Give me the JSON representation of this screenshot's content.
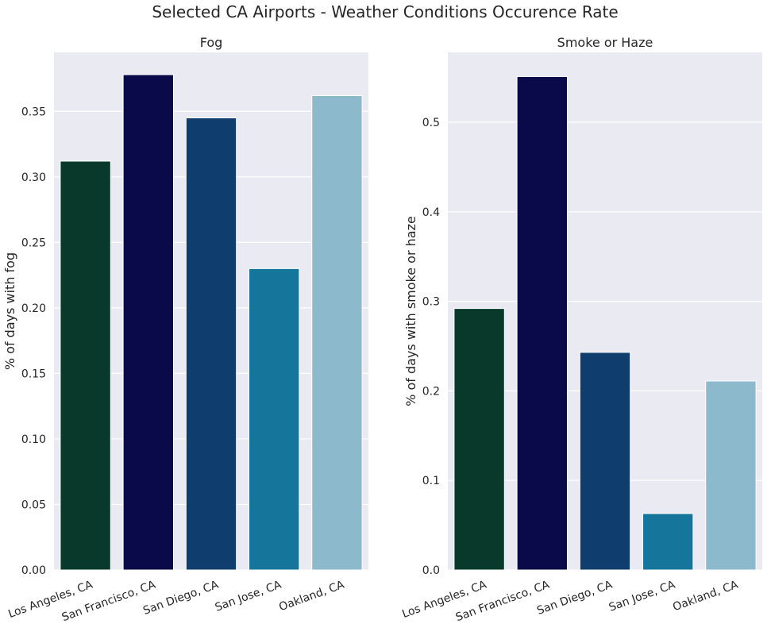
{
  "figure": {
    "title": "Selected CA Airports - Weather Conditions Occurence Rate"
  },
  "colors": {
    "panel_background": "#eaeaf2",
    "grid": "#ffffff",
    "text": "#262626",
    "bar_palette": [
      "#08392a",
      "#0a0949",
      "#0f3e6e",
      "#16759a",
      "#8cbacc"
    ]
  },
  "chart_data": [
    {
      "type": "bar",
      "title": "Fog",
      "xlabel": "",
      "ylabel": "% of days with fog",
      "categories": [
        "Los Angeles, CA",
        "San Francisco, CA",
        "San Diego, CA",
        "San Jose, CA",
        "Oakland, CA"
      ],
      "values": [
        0.312,
        0.378,
        0.345,
        0.23,
        0.362
      ],
      "ylim": [
        0,
        0.395
      ],
      "yticks": [
        "0.00",
        "0.05",
        "0.10",
        "0.15",
        "0.20",
        "0.25",
        "0.30",
        "0.35"
      ],
      "grid": true,
      "xtick_rotation_deg": 20
    },
    {
      "type": "bar",
      "title": "Smoke or Haze",
      "xlabel": "",
      "ylabel": "% of days with smoke or haze",
      "categories": [
        "Los Angeles, CA",
        "San Francisco, CA",
        "San Diego, CA",
        "San Jose, CA",
        "Oakland, CA"
      ],
      "values": [
        0.292,
        0.551,
        0.243,
        0.063,
        0.211
      ],
      "ylim": [
        0,
        0.578
      ],
      "yticks": [
        "0.0",
        "0.1",
        "0.2",
        "0.3",
        "0.4",
        "0.5"
      ],
      "grid": true,
      "xtick_rotation_deg": 20
    }
  ]
}
